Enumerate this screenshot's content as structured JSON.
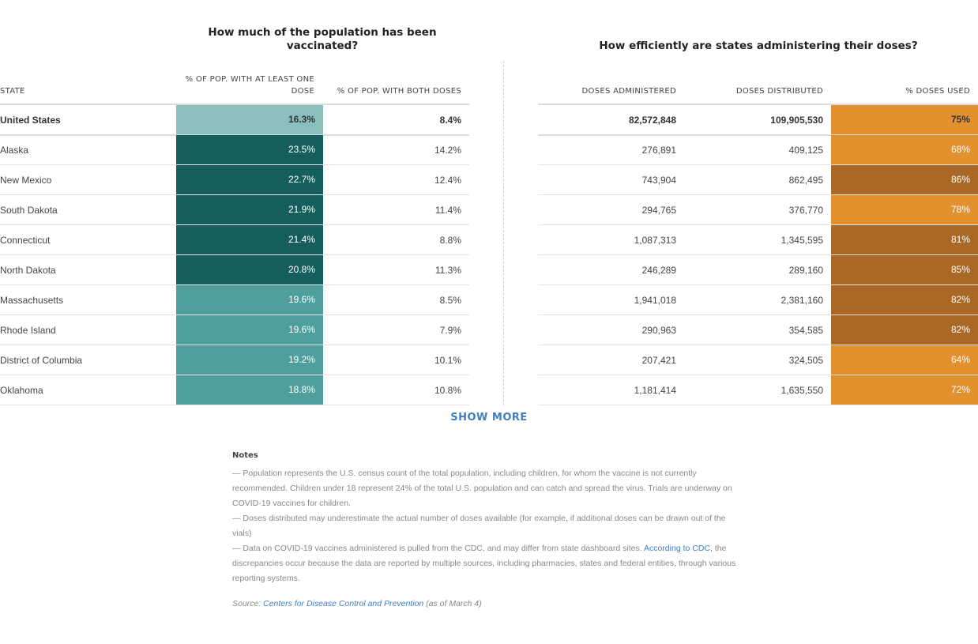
{
  "titles": {
    "left": "How much of the population has been vaccinated?",
    "right": "How efficiently are states administering their doses?"
  },
  "headers": {
    "state": "STATE",
    "one_dose": "% OF POP. WITH AT LEAST ONE DOSE",
    "both_doses": "% OF POP. WITH BOTH DOSES",
    "administered": "DOSES ADMINISTERED",
    "distributed": "DOSES DISTRIBUTED",
    "used": "% DOSES USED"
  },
  "colors": {
    "teal_light": "#8bbfbe",
    "teal_mid": "#4f9f9c",
    "teal_dark": "#155e5c",
    "orange": "#e3902f",
    "brown": "#a96825",
    "link": "#3f7fbf"
  },
  "rows": [
    {
      "state": "United States",
      "one_dose": "16.3%",
      "both_doses": "8.4%",
      "administered": "82,572,848",
      "distributed": "109,905,530",
      "used": "75%",
      "one_color": "#8bbfbe",
      "used_color": "#e3902f",
      "bold": true
    },
    {
      "state": "Alaska",
      "one_dose": "23.5%",
      "both_doses": "14.2%",
      "administered": "276,891",
      "distributed": "409,125",
      "used": "68%",
      "one_color": "#155e5c",
      "used_color": "#e3902f"
    },
    {
      "state": "New Mexico",
      "one_dose": "22.7%",
      "both_doses": "12.4%",
      "administered": "743,904",
      "distributed": "862,495",
      "used": "86%",
      "one_color": "#155e5c",
      "used_color": "#a96825"
    },
    {
      "state": "South Dakota",
      "one_dose": "21.9%",
      "both_doses": "11.4%",
      "administered": "294,765",
      "distributed": "376,770",
      "used": "78%",
      "one_color": "#155e5c",
      "used_color": "#e3902f"
    },
    {
      "state": "Connecticut",
      "one_dose": "21.4%",
      "both_doses": "8.8%",
      "administered": "1,087,313",
      "distributed": "1,345,595",
      "used": "81%",
      "one_color": "#155e5c",
      "used_color": "#a96825"
    },
    {
      "state": "North Dakota",
      "one_dose": "20.8%",
      "both_doses": "11.3%",
      "administered": "246,289",
      "distributed": "289,160",
      "used": "85%",
      "one_color": "#155e5c",
      "used_color": "#a96825"
    },
    {
      "state": "Massachusetts",
      "one_dose": "19.6%",
      "both_doses": "8.5%",
      "administered": "1,941,018",
      "distributed": "2,381,160",
      "used": "82%",
      "one_color": "#4f9f9c",
      "used_color": "#a96825"
    },
    {
      "state": "Rhode Island",
      "one_dose": "19.6%",
      "both_doses": "7.9%",
      "administered": "290,963",
      "distributed": "354,585",
      "used": "82%",
      "one_color": "#4f9f9c",
      "used_color": "#a96825"
    },
    {
      "state": "District of Columbia",
      "one_dose": "19.2%",
      "both_doses": "10.1%",
      "administered": "207,421",
      "distributed": "324,505",
      "used": "64%",
      "one_color": "#4f9f9c",
      "used_color": "#e3902f"
    },
    {
      "state": "Oklahoma",
      "one_dose": "18.8%",
      "both_doses": "10.8%",
      "administered": "1,181,414",
      "distributed": "1,635,550",
      "used": "72%",
      "one_color": "#4f9f9c",
      "used_color": "#e3902f"
    }
  ],
  "show_more": "SHOW MORE",
  "notes": {
    "title": "Notes",
    "items": [
      {
        "text": "— Population represents the U.S. census count of the total population, including children, for whom the vaccine is not currently recommended. Children under 18 represent 24% of the total U.S. population and can catch and spread the virus. Trials are underway on COVID-19 vaccines for children."
      },
      {
        "text": "— Doses distributed may underestimate the actual number of doses available (for example, if additional doses can be drawn out of the vials)"
      },
      {
        "text": "— Data on COVID-19 vaccines administered is pulled from the CDC, and may differ from state dashboard sites. ",
        "link": "According to CDC",
        "after": ", the discrepancies occur because the data are reported by multiple sources, including pharmacies, states and federal entities, through various reporting systems."
      }
    ],
    "source_prefix": "Source: ",
    "source_link": "Centers for Disease Control and Prevention",
    "source_suffix": " (as of March 4)"
  }
}
